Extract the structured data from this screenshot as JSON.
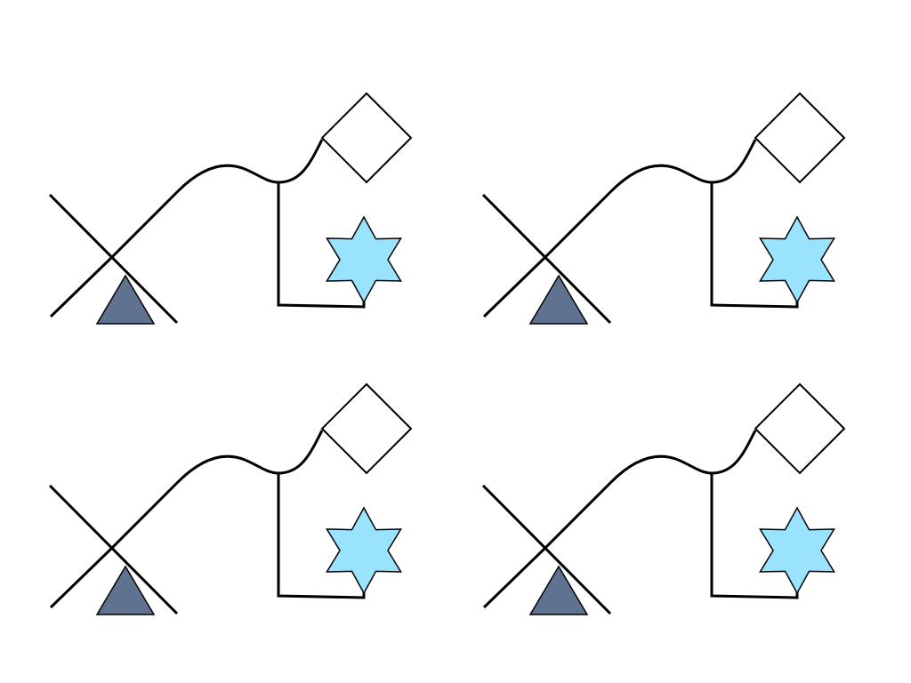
{
  "diagram": {
    "tile_count": 4,
    "elements": [
      {
        "name": "x-cross",
        "shape": "crossed lines"
      },
      {
        "name": "triangle",
        "shape": "triangle",
        "fill": "#5f7390"
      },
      {
        "name": "wavy-connector",
        "shape": "curved line"
      },
      {
        "name": "diamond",
        "shape": "square rotated 45 degrees",
        "fill": "#ffffff"
      },
      {
        "name": "star",
        "shape": "six-pointed star",
        "fill": "#99e3ff"
      }
    ]
  },
  "colors": {
    "background": "#ffffff",
    "stroke": "#000000",
    "triangle_fill": "#5f7390",
    "star_fill": "#99e3ff",
    "diamond_fill": "#ffffff"
  }
}
